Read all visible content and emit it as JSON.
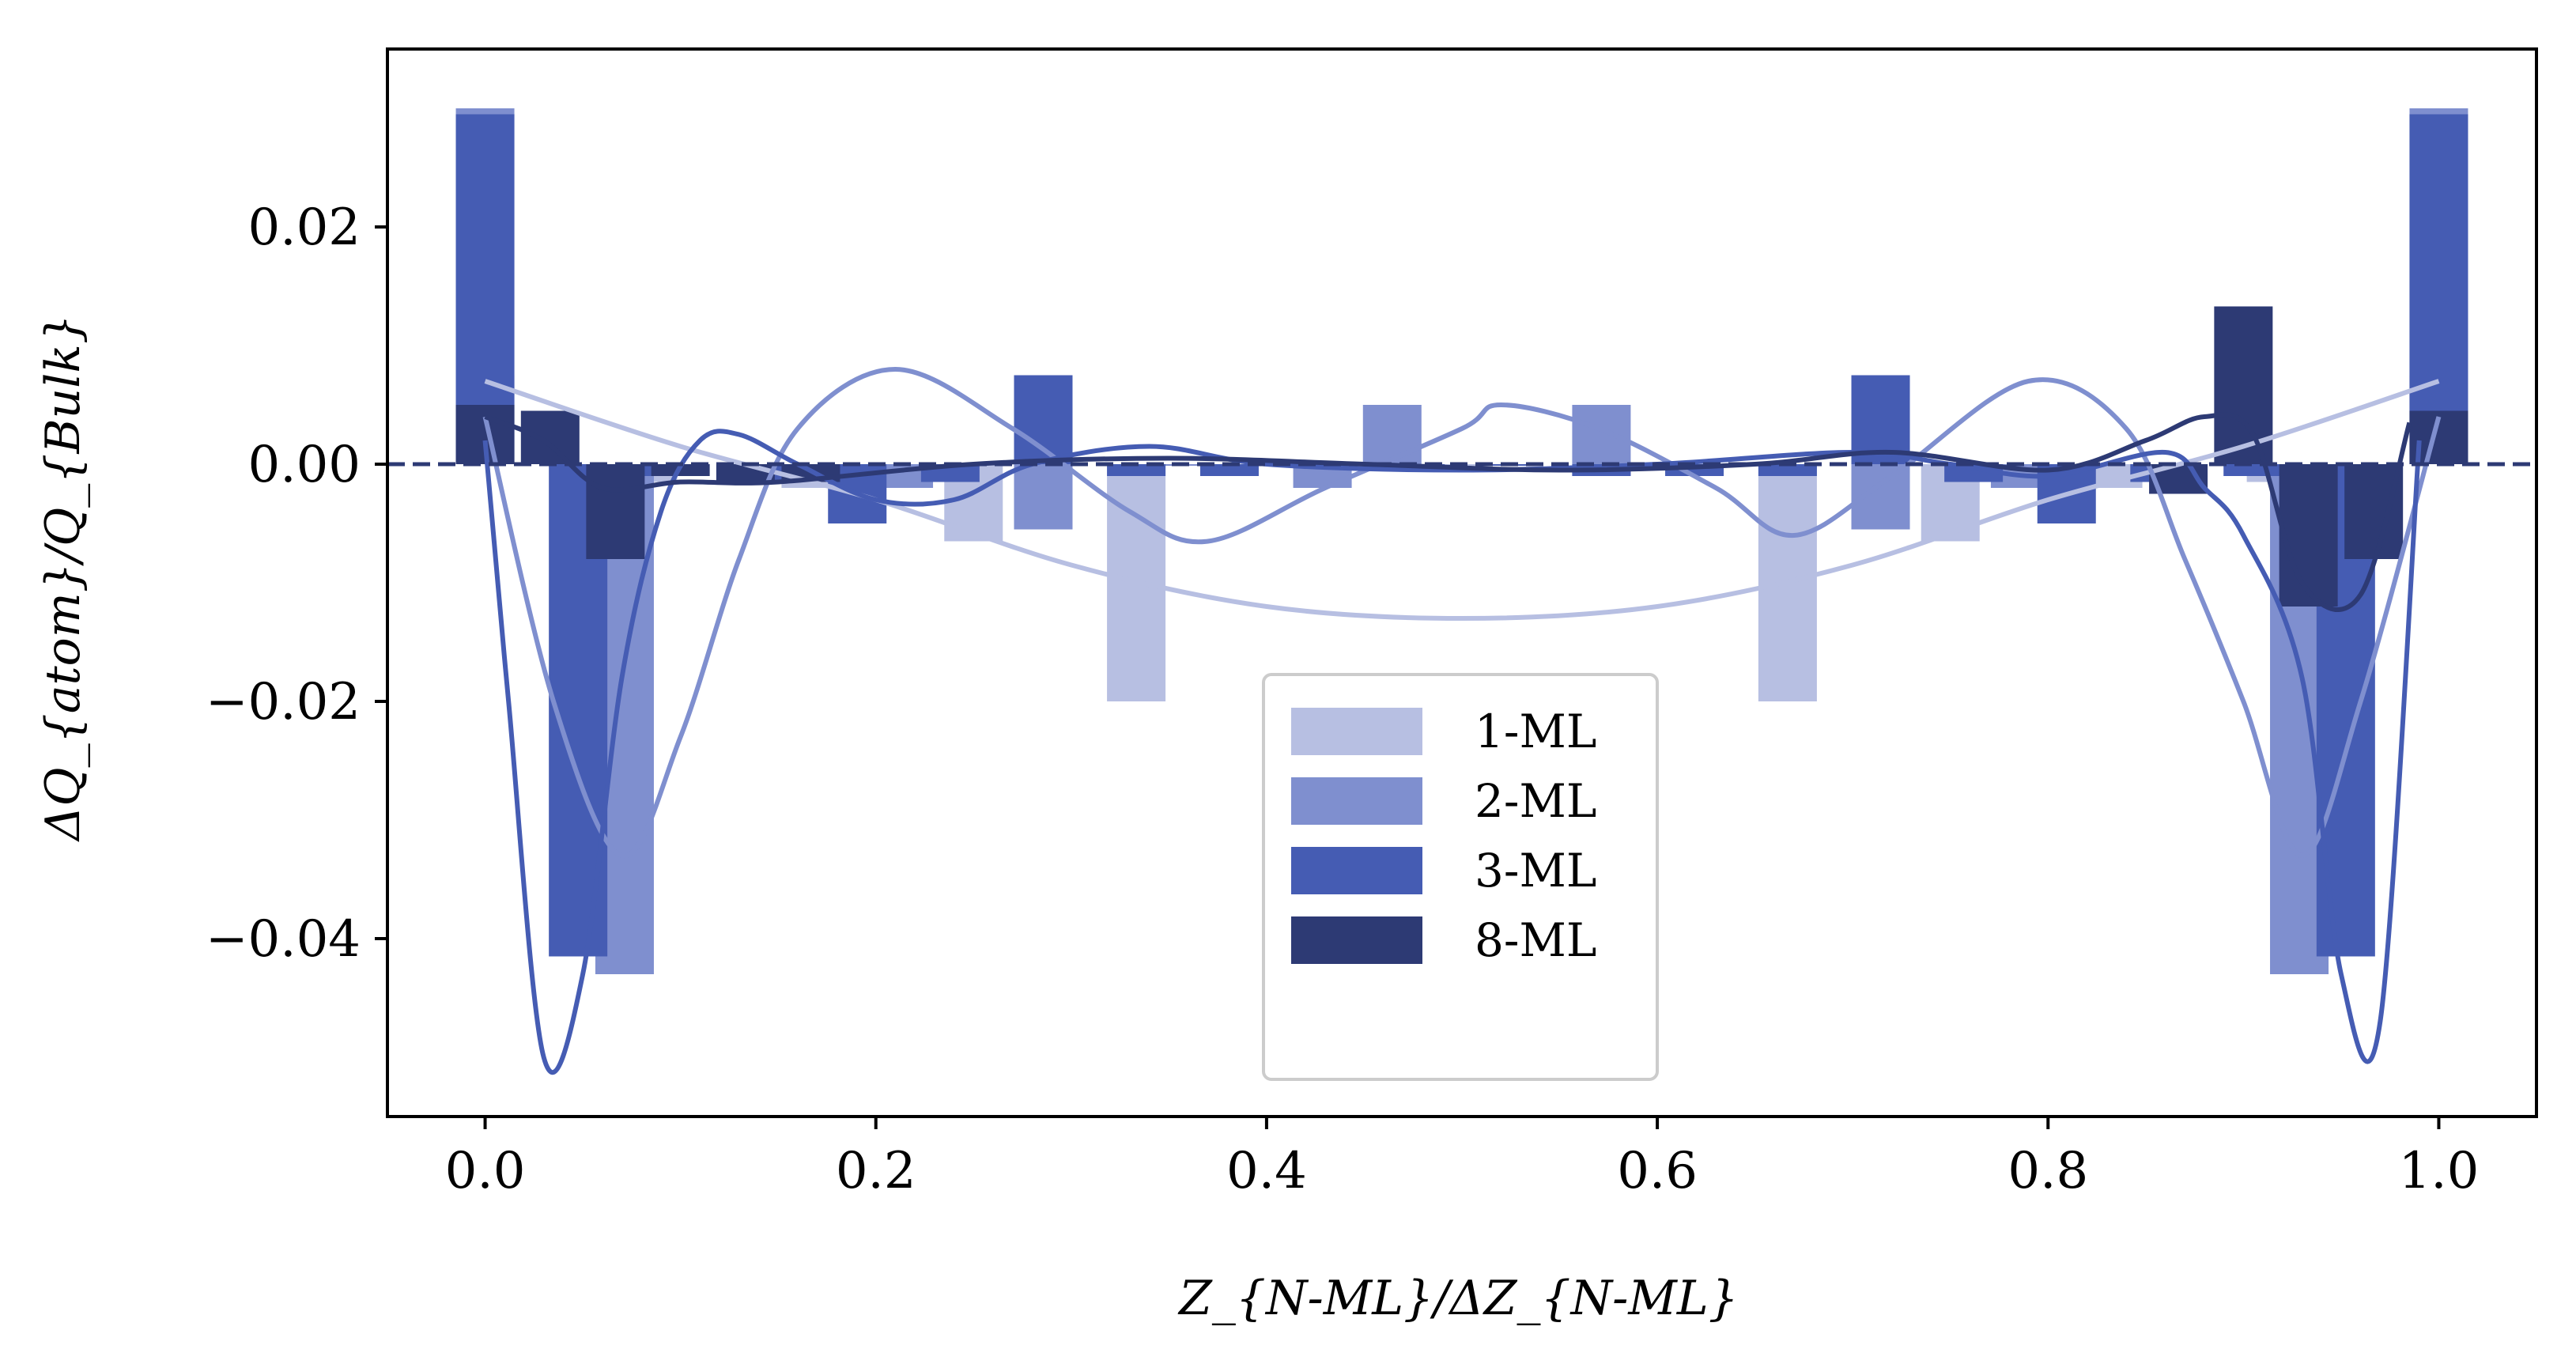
{
  "chart_data": {
    "type": "bar",
    "xlabel": "Z_{N-ML}/ΔZ_{N-ML}",
    "ylabel": "ΔQ_{atom}/Q_{Bulk}",
    "xlim": [
      -0.05,
      1.05
    ],
    "ylim": [
      -0.055,
      0.035
    ],
    "xticks": [
      0.0,
      0.2,
      0.4,
      0.6,
      0.8,
      1.0
    ],
    "xtick_labels": [
      "0.0",
      "0.2",
      "0.4",
      "0.6",
      "0.8",
      "1.0"
    ],
    "yticks": [
      -0.04,
      -0.02,
      0.0,
      0.02
    ],
    "ytick_labels": [
      "−0.04",
      "−0.02",
      "0.00",
      "0.02"
    ],
    "reference_line": {
      "y": 0.0,
      "style": "dashed",
      "color": "#2d3a74"
    },
    "legend": {
      "placement": "lower center"
    },
    "series": [
      {
        "name": "1-ML",
        "color": "#b7bfe2",
        "bars": [
          {
            "x": 0.0,
            "value": 0.0075
          },
          {
            "x": 0.0833,
            "value": -0.0015
          },
          {
            "x": 0.1667,
            "value": -0.002
          },
          {
            "x": 0.25,
            "value": -0.0065
          },
          {
            "x": 0.3333,
            "value": -0.02
          },
          {
            "x": 0.4167,
            "value": 0.0
          },
          {
            "x": 0.5,
            "value": 0.0
          },
          {
            "x": 0.5833,
            "value": 0.0
          },
          {
            "x": 0.6667,
            "value": -0.02
          },
          {
            "x": 0.75,
            "value": -0.0065
          },
          {
            "x": 0.8333,
            "value": -0.002
          },
          {
            "x": 0.9167,
            "value": -0.0015
          },
          {
            "x": 1.0,
            "value": 0.0075
          }
        ],
        "curve": [
          [
            0.0,
            0.007
          ],
          [
            0.1,
            0.0015
          ],
          [
            0.2,
            -0.003
          ],
          [
            0.3,
            -0.0085
          ],
          [
            0.4,
            -0.012
          ],
          [
            0.5,
            -0.013
          ],
          [
            0.6,
            -0.012
          ],
          [
            0.7,
            -0.0085
          ],
          [
            0.8,
            -0.003
          ],
          [
            0.9,
            0.0015
          ],
          [
            1.0,
            0.007
          ]
        ]
      },
      {
        "name": "2-ML",
        "color": "#7f8fcf",
        "bars": [
          {
            "x": 0.0,
            "value": 0.03
          },
          {
            "x": 0.0714,
            "value": -0.043
          },
          {
            "x": 0.1429,
            "value": -0.001
          },
          {
            "x": 0.2143,
            "value": -0.002
          },
          {
            "x": 0.2857,
            "value": -0.0055
          },
          {
            "x": 0.3571,
            "value": 0.0
          },
          {
            "x": 0.4286,
            "value": -0.002
          },
          {
            "x": 0.4643,
            "value": 0.005
          },
          {
            "x": 0.5714,
            "value": -0.001
          },
          {
            "x": 0.5714,
            "value": 0.005
          },
          {
            "x": 0.7143,
            "value": -0.0055
          },
          {
            "x": 0.7857,
            "value": -0.002
          },
          {
            "x": 0.8571,
            "value": -0.001
          },
          {
            "x": 0.9286,
            "value": -0.043
          },
          {
            "x": 1.0,
            "value": 0.03
          }
        ],
        "curve": [
          [
            0.0,
            0.004
          ],
          [
            0.035,
            -0.02
          ],
          [
            0.07,
            -0.033
          ],
          [
            0.1,
            -0.023
          ],
          [
            0.13,
            -0.008
          ],
          [
            0.16,
            0.003
          ],
          [
            0.21,
            0.008
          ],
          [
            0.27,
            0.003
          ],
          [
            0.33,
            -0.004
          ],
          [
            0.37,
            -0.0065
          ],
          [
            0.43,
            -0.002
          ],
          [
            0.5,
            0.003
          ],
          [
            0.52,
            0.005
          ],
          [
            0.57,
            0.003
          ],
          [
            0.63,
            -0.002
          ],
          [
            0.67,
            -0.006
          ],
          [
            0.72,
            -0.001
          ],
          [
            0.79,
            0.007
          ],
          [
            0.84,
            0.003
          ],
          [
            0.87,
            -0.008
          ],
          [
            0.9,
            -0.02
          ],
          [
            0.93,
            -0.033
          ],
          [
            0.96,
            -0.02
          ],
          [
            1.0,
            0.004
          ]
        ]
      },
      {
        "name": "3-ML",
        "color": "#455cb3",
        "bars": [
          {
            "x": 0.0,
            "value": 0.0295
          },
          {
            "x": 0.0476,
            "value": -0.0415
          },
          {
            "x": 0.0952,
            "value": -0.001
          },
          {
            "x": 0.1429,
            "value": -0.0015
          },
          {
            "x": 0.1905,
            "value": -0.005
          },
          {
            "x": 0.2381,
            "value": -0.0015
          },
          {
            "x": 0.2857,
            "value": 0.0075
          },
          {
            "x": 0.3333,
            "value": -0.001
          },
          {
            "x": 0.381,
            "value": -0.001
          },
          {
            "x": 0.4286,
            "value": 0.0
          },
          {
            "x": 0.4762,
            "value": 0.0
          },
          {
            "x": 0.5238,
            "value": 0.0
          },
          {
            "x": 0.5714,
            "value": -0.001
          },
          {
            "x": 0.619,
            "value": -0.001
          },
          {
            "x": 0.6667,
            "value": -0.001
          },
          {
            "x": 0.7143,
            "value": 0.0075
          },
          {
            "x": 0.7619,
            "value": -0.0015
          },
          {
            "x": 0.8095,
            "value": -0.005
          },
          {
            "x": 0.8571,
            "value": -0.0015
          },
          {
            "x": 0.9048,
            "value": -0.001
          },
          {
            "x": 0.9524,
            "value": -0.0415
          },
          {
            "x": 1.0,
            "value": 0.0295
          }
        ],
        "curve": [
          [
            0.0,
            0.002
          ],
          [
            0.012,
            -0.02
          ],
          [
            0.03,
            -0.05
          ],
          [
            0.05,
            -0.043
          ],
          [
            0.07,
            -0.018
          ],
          [
            0.09,
            -0.004
          ],
          [
            0.11,
            0.002
          ],
          [
            0.13,
            0.0025
          ],
          [
            0.16,
            0.0
          ],
          [
            0.2,
            -0.003
          ],
          [
            0.24,
            -0.003
          ],
          [
            0.28,
            0.0
          ],
          [
            0.34,
            0.0015
          ],
          [
            0.4,
            0.0
          ],
          [
            0.5,
            -0.0005
          ],
          [
            0.6,
            0.0
          ],
          [
            0.7,
            0.001
          ],
          [
            0.75,
            0.0
          ],
          [
            0.8,
            -0.001
          ],
          [
            0.86,
            0.001
          ],
          [
            0.88,
            -0.002
          ],
          [
            0.9,
            -0.006
          ],
          [
            0.93,
            -0.018
          ],
          [
            0.95,
            -0.043
          ],
          [
            0.97,
            -0.047
          ],
          [
            0.99,
            0.002
          ]
        ]
      },
      {
        "name": "8-ML",
        "color": "#2d3a74",
        "bars": [
          {
            "x": 0.0,
            "value": 0.005
          },
          {
            "x": 0.0333,
            "value": 0.0045
          },
          {
            "x": 0.0667,
            "value": -0.008
          },
          {
            "x": 0.1,
            "value": -0.001
          },
          {
            "x": 0.1333,
            "value": -0.0015
          },
          {
            "x": 0.1667,
            "value": -0.0015
          },
          {
            "x": 0.8667,
            "value": -0.0025
          },
          {
            "x": 0.9,
            "value": 0.0133
          },
          {
            "x": 0.9333,
            "value": -0.012
          },
          {
            "x": 0.9667,
            "value": -0.008
          },
          {
            "x": 1.0,
            "value": 0.0045
          }
        ],
        "curve": [
          [
            0.0,
            0.004
          ],
          [
            0.03,
            0.002
          ],
          [
            0.06,
            -0.002
          ],
          [
            0.1,
            -0.0015
          ],
          [
            0.15,
            -0.0015
          ],
          [
            0.25,
            0.0
          ],
          [
            0.35,
            0.0005
          ],
          [
            0.45,
            0.0
          ],
          [
            0.55,
            -0.0005
          ],
          [
            0.65,
            0.0
          ],
          [
            0.72,
            0.001
          ],
          [
            0.8,
            -0.0005
          ],
          [
            0.85,
            0.002
          ],
          [
            0.88,
            0.004
          ],
          [
            0.905,
            0.0025
          ],
          [
            0.93,
            -0.01
          ],
          [
            0.96,
            -0.011
          ],
          [
            0.985,
            0.0035
          ]
        ]
      }
    ]
  }
}
